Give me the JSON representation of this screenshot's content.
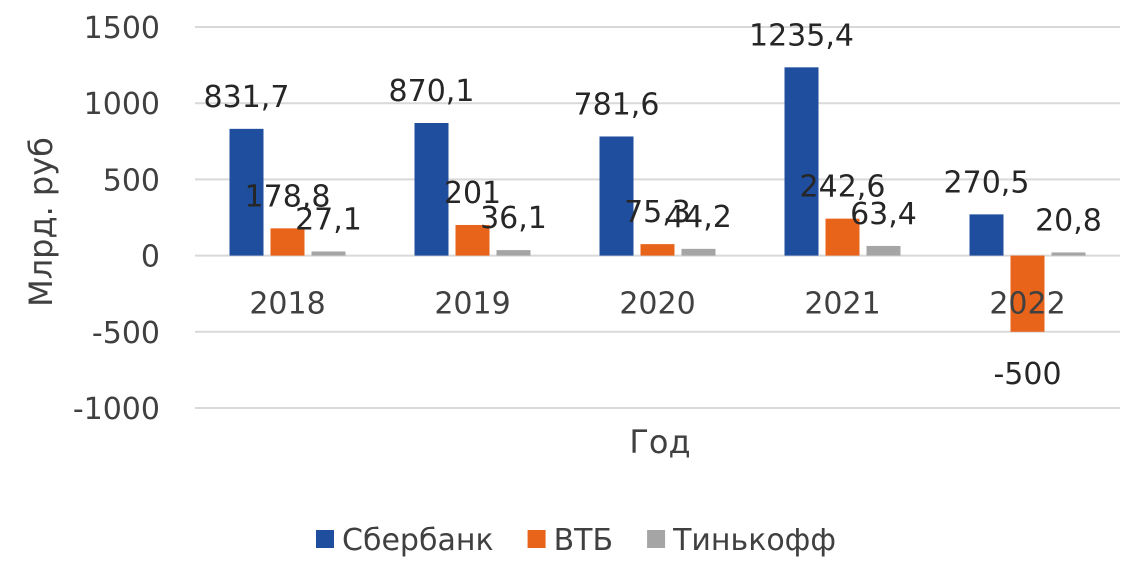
{
  "chart_data": {
    "type": "bar",
    "title": "",
    "xlabel": "Год",
    "ylabel": "Млрд. руб",
    "ylim": [
      -1000,
      1500
    ],
    "yticks": [
      1500,
      1000,
      500,
      0,
      -500,
      -1000
    ],
    "grid": true,
    "legend_position": "bottom",
    "categories": [
      "2018",
      "2019",
      "2020",
      "2021",
      "2022"
    ],
    "series": [
      {
        "name": "Сбербанк",
        "color": "#1f4e9e",
        "values": [
          831.7,
          870.1,
          781.6,
          1235.4,
          270.5
        ],
        "labels": [
          "831,7",
          "870,1",
          "781,6",
          "1235,4",
          "270,5"
        ]
      },
      {
        "name": "ВТБ",
        "color": "#e8641b",
        "values": [
          178.8,
          201,
          75.3,
          242.6,
          -500
        ],
        "labels": [
          "178,8",
          "201",
          "75,3",
          "242,6",
          "-500"
        ]
      },
      {
        "name": "Тинькофф",
        "color": "#a5a5a5",
        "values": [
          27.1,
          36.1,
          44.2,
          63.4,
          20.8
        ],
        "labels": [
          "27,1",
          "36,1",
          "44,2",
          "63,4",
          "20,8"
        ]
      }
    ]
  }
}
